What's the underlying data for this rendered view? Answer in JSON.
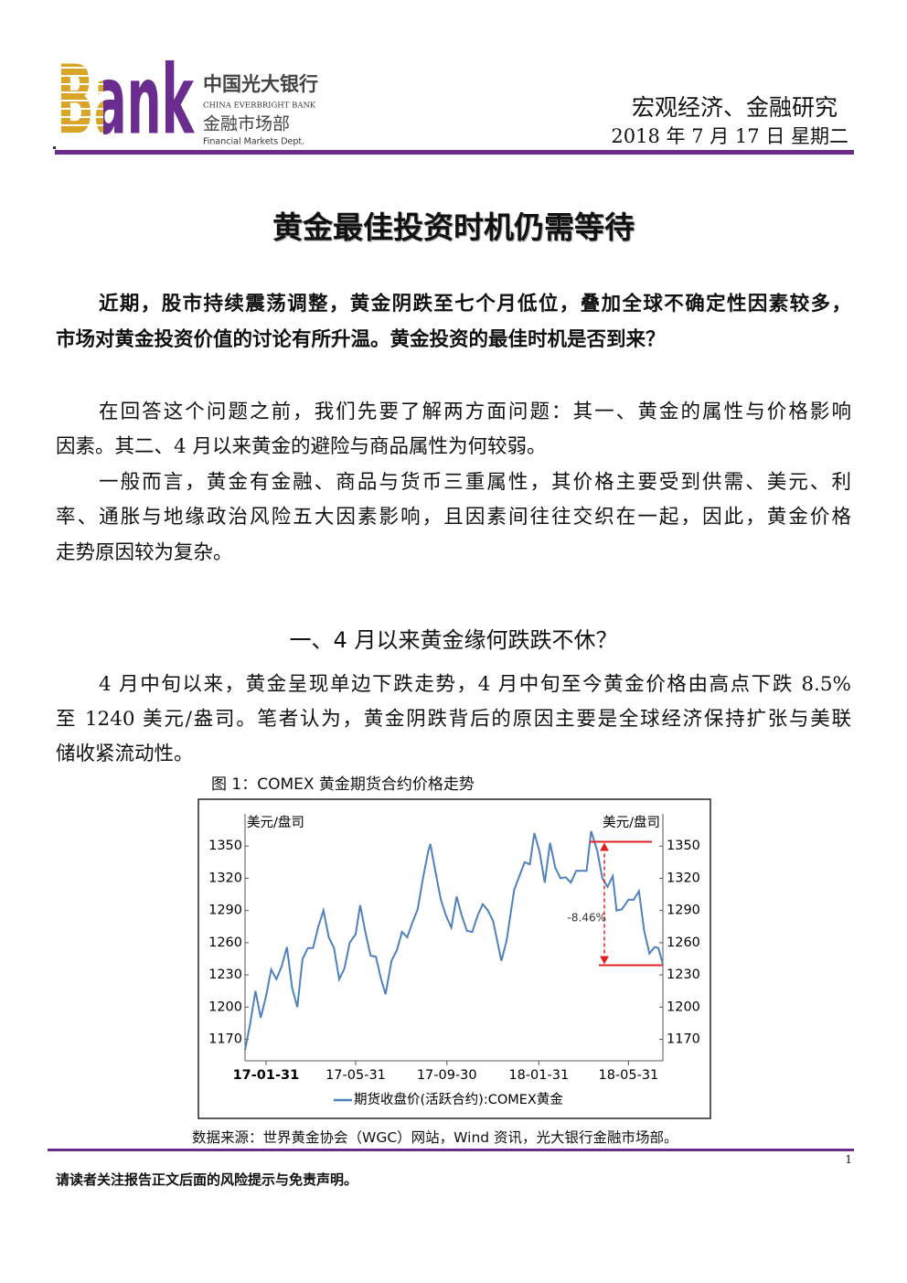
{
  "header": {
    "logo": "Bank",
    "bank_cn": "中国光大银行",
    "bank_en": "CHINA EVERBRIGHT BANK",
    "dept_cn": "金融市场部",
    "dept_en": "Financial Markets Dept.",
    "category": "宏观经济、金融研究",
    "date": "2018 年 7 月 17 日  星期二"
  },
  "title": "黄金最佳投资时机仍需等待",
  "intro": [
    "近期，股市持续震荡调整，黄金阴跌至七个月低位，叠加全球不确定性因素较多，",
    "市场对黄金投资价值的讨论有所升温。黄金投资的最佳时机是否到来？"
  ],
  "paragraphs": [
    [
      "在回答这个问题之前，我们先要了解两方面问题：其一、黄金的属性与价格影响",
      "因素。其二、4 月以来黄金的避险与商品属性为何较弱。"
    ],
    [
      "一般而言，黄金有金融、商品与货币三重属性，其价格主要受到供需、美元、利",
      "率、通胀与地缘政治风险五大因素影响，且因素间往往交织在一起，因此，黄金价格",
      "走势原因较为复杂。"
    ]
  ],
  "section_heading": "一、4 月以来黄金缘何跌跌不休？",
  "section_paragraph": [
    "4 月中旬以来，黄金呈现单边下跌走势，4 月中旬至今黄金价格由高点下跌 8.5%",
    "至 1240 美元/盎司。笔者认为，黄金阴跌背后的原因主要是全球经济保持扩张与美联",
    "储收紧流动性。"
  ],
  "figure_caption": "图 1：COMEX 黄金期货合约价格走势",
  "chart_data": {
    "type": "line",
    "y_label": "美元/盘司",
    "y2_label": "美元/盘司",
    "x": [
      "17-01-03",
      "17-01-10",
      "17-01-17",
      "17-01-24",
      "17-01-31",
      "17-02-07",
      "17-02-14",
      "17-02-21",
      "17-02-28",
      "17-03-07",
      "17-03-14",
      "17-03-21",
      "17-03-28",
      "17-04-04",
      "17-04-11",
      "17-04-18",
      "17-04-25",
      "17-05-02",
      "17-05-09",
      "17-05-16",
      "17-05-23",
      "17-05-31",
      "17-06-06",
      "17-06-13",
      "17-06-20",
      "17-06-27",
      "17-07-04",
      "17-07-10",
      "17-07-18",
      "17-07-25",
      "17-08-01",
      "17-08-08",
      "17-08-15",
      "17-08-22",
      "17-08-29",
      "17-09-05",
      "17-09-08",
      "17-09-15",
      "17-09-22",
      "17-09-29",
      "17-10-06",
      "17-10-13",
      "17-10-20",
      "17-10-27",
      "17-11-03",
      "17-11-10",
      "17-11-17",
      "17-11-24",
      "17-12-01",
      "17-12-12",
      "17-12-19",
      "17-12-29",
      "18-01-05",
      "18-01-12",
      "18-01-19",
      "18-01-25",
      "18-02-01",
      "18-02-08",
      "18-02-15",
      "18-02-22",
      "18-03-01",
      "18-03-08",
      "18-03-15",
      "18-03-22",
      "18-03-29",
      "18-04-05",
      "18-04-11",
      "18-04-19",
      "18-04-26",
      "18-05-03",
      "18-05-10",
      "18-05-15",
      "18-05-22",
      "18-05-31",
      "18-06-07",
      "18-06-14",
      "18-06-21",
      "18-06-28",
      "18-07-05",
      "18-07-10",
      "18-07-16"
    ],
    "series": [
      {
        "name": "期货收盘价(活跃合约):COMEX黄金",
        "color": "#4f81bd",
        "values": [
          1160,
          1185,
          1215,
          1190,
          1210,
          1235,
          1226,
          1238,
          1256,
          1218,
          1200,
          1245,
          1255,
          1255,
          1275,
          1290,
          1265,
          1255,
          1226,
          1236,
          1260,
          1268,
          1295,
          1270,
          1248,
          1247,
          1226,
          1212,
          1243,
          1253,
          1270,
          1265,
          1279,
          1291,
          1320,
          1345,
          1352,
          1325,
          1300,
          1285,
          1274,
          1303,
          1285,
          1271,
          1270,
          1285,
          1296,
          1290,
          1280,
          1243,
          1262,
          1309,
          1322,
          1335,
          1333,
          1362,
          1345,
          1316,
          1353,
          1330,
          1320,
          1321,
          1316,
          1327,
          1327,
          1327,
          1364,
          1346,
          1320,
          1312,
          1322,
          1290,
          1291,
          1300,
          1300,
          1308,
          1271,
          1250,
          1256,
          1255,
          1240
        ]
      }
    ],
    "xlim": [
      "17-01-03",
      "18-07-16"
    ],
    "xticks": [
      "17-01-31",
      "17-05-31",
      "17-09-30",
      "18-01-31",
      "18-05-31"
    ],
    "ylim": [
      1150,
      1380
    ],
    "yticks": [
      1170,
      1200,
      1230,
      1260,
      1290,
      1320,
      1350
    ],
    "y2lim": [
      1150,
      1380
    ],
    "y2ticks": [
      1170,
      1200,
      1230,
      1260,
      1290,
      1320,
      1350
    ],
    "annotation": {
      "label": "-8.46%",
      "y_high": 1354,
      "y_low": 1239,
      "color": "#e02020"
    }
  },
  "source": "数据来源：世界黄金协会（WGC）网站，Wind 资讯，光大银行金融市场部。",
  "page_number": "1",
  "footer": "请读者关注报告正文后面的风险提示与免责声明。"
}
